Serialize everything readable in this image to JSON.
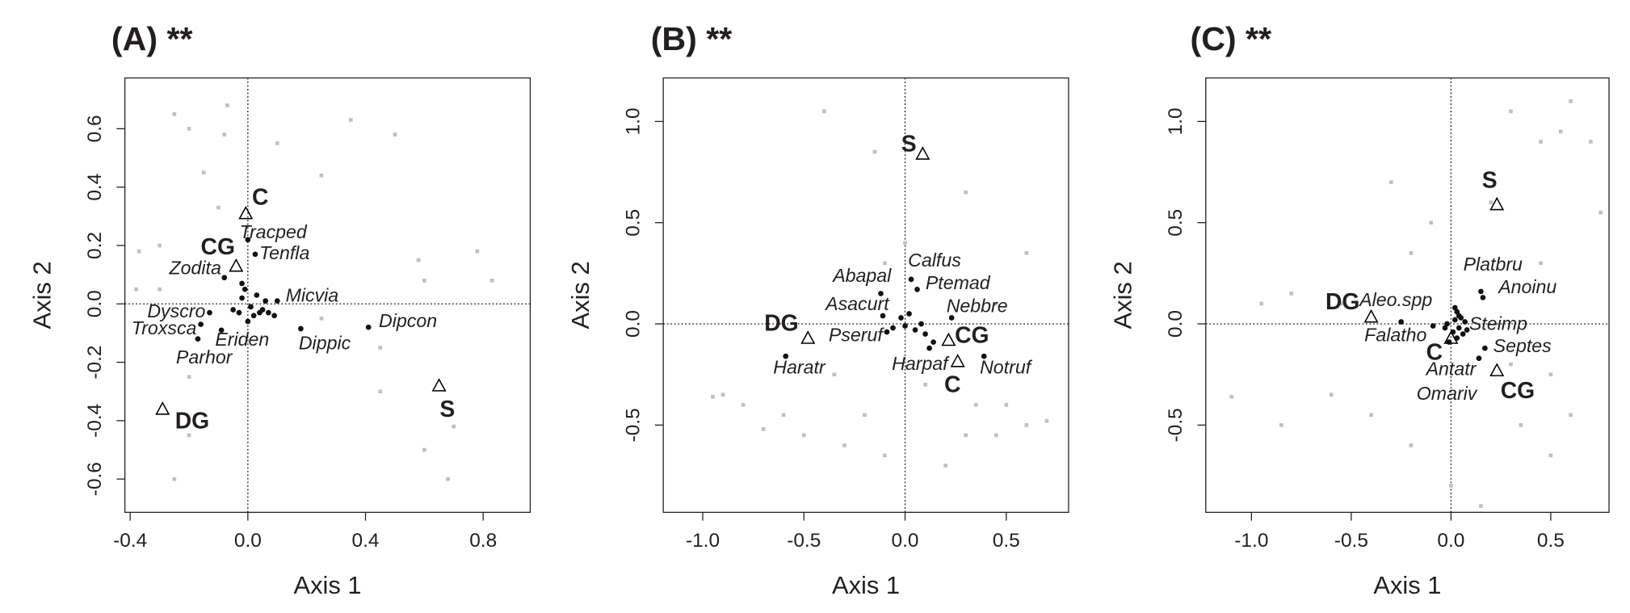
{
  "chart_data": [
    {
      "type": "scatter",
      "title": "(A) **",
      "xlabel": "Axis 1",
      "ylabel": "Axis 2",
      "xlim": [
        -0.418,
        0.96
      ],
      "ylim": [
        -0.714,
        0.774
      ],
      "xticks": [
        -0.4,
        {
          "value": 0,
          "label": "0.0"
        },
        0.4,
        0.8
      ],
      "yticks": [
        -0.6,
        -0.4,
        -0.2,
        {
          "value": 0,
          "label": "0.0"
        },
        0.2,
        0.4,
        0.6
      ],
      "zero_lines": true,
      "series": [
        {
          "marker": "square",
          "color": "#c0c0c0",
          "x": [
            -0.25,
            -0.2,
            -0.07,
            -0.15,
            -0.08,
            0.35,
            0.5,
            0.25,
            0.1,
            -0.3,
            -0.37,
            -0.3,
            -0.38,
            0.58,
            0.78,
            0.83,
            0.6,
            0.45,
            0.45,
            0.6,
            0.7,
            0.68,
            -0.2,
            -0.25,
            -0.2,
            0.25,
            -0.1
          ],
          "y": [
            0.65,
            0.6,
            0.68,
            0.45,
            0.58,
            0.63,
            0.58,
            0.44,
            0.55,
            0.2,
            0.18,
            0.05,
            0.05,
            0.15,
            0.18,
            0.08,
            0.08,
            -0.15,
            -0.3,
            -0.5,
            -0.42,
            -0.6,
            -0.45,
            -0.6,
            -0.25,
            -0.05,
            0.33
          ]
        },
        {
          "marker": "dot",
          "color": "#111111",
          "x": [
            0.0,
            0.025,
            -0.08,
            0.1,
            -0.13,
            -0.16,
            -0.09,
            -0.17,
            0.18,
            0.41,
            -0.02,
            0.01,
            0.03,
            0.05,
            -0.03,
            0.02,
            0.06,
            -0.01,
            0.04,
            0.07,
            -0.05,
            0.0,
            0.09,
            -0.02
          ],
          "y": [
            0.22,
            0.17,
            0.09,
            0.01,
            -0.03,
            -0.07,
            -0.09,
            -0.12,
            -0.085,
            -0.08,
            0.02,
            -0.01,
            0.03,
            -0.02,
            -0.03,
            -0.04,
            0.01,
            0.05,
            -0.03,
            -0.03,
            -0.02,
            -0.06,
            -0.04,
            0.07
          ],
          "labels": [
            "Tracped",
            "Tenfla",
            "Zodita",
            "Micvia",
            "Dyscro",
            "Troxsca",
            "Eriden",
            "Parhor",
            "Dippic",
            "Dipcon",
            null,
            null,
            null,
            null,
            null,
            null,
            null,
            null,
            null,
            null,
            null,
            null,
            null,
            null
          ]
        },
        {
          "marker": "triangle",
          "color": "#000000",
          "x": [
            -0.007,
            -0.04,
            -0.29,
            0.65
          ],
          "y": [
            0.31,
            0.13,
            -0.36,
            -0.28
          ],
          "labels": [
            "C",
            "CG",
            "DG",
            "S"
          ]
        }
      ]
    },
    {
      "type": "scatter",
      "title": "(B) **",
      "xlabel": "Axis 1",
      "ylabel": "Axis 2",
      "xlim": [
        -1.195,
        0.808
      ],
      "ylim": [
        -0.931,
        1.215
      ],
      "xticks": [
        {
          "value": -1,
          "label": "-1.0"
        },
        -0.5,
        {
          "value": 0,
          "label": "0.0"
        },
        0.5
      ],
      "yticks": [
        -0.5,
        {
          "value": 0,
          "label": "0.0"
        },
        0.5,
        {
          "value": 1,
          "label": "1.0"
        }
      ],
      "zero_lines": true,
      "series": [
        {
          "marker": "square",
          "color": "#c0c0c0",
          "x": [
            -0.4,
            -0.15,
            -0.1,
            0.3,
            0.45,
            0.6,
            -0.9,
            -0.6,
            -0.8,
            -0.5,
            -0.3,
            -0.2,
            -0.1,
            0.1,
            0.3,
            0.45,
            0.5,
            0.6,
            0.7,
            -0.7,
            -0.95,
            0.2,
            -0.35,
            0.0,
            0.35
          ],
          "y": [
            1.05,
            0.85,
            0.3,
            0.65,
            0.1,
            0.35,
            -0.35,
            -0.45,
            -0.4,
            -0.55,
            -0.6,
            -0.45,
            -0.65,
            -0.3,
            -0.55,
            -0.55,
            -0.4,
            -0.5,
            -0.48,
            -0.52,
            -0.36,
            -0.7,
            -0.25,
            0.4,
            -0.4
          ]
        },
        {
          "marker": "dot",
          "color": "#111111",
          "x": [
            -0.12,
            0.03,
            0.06,
            -0.11,
            0.23,
            -0.09,
            -0.59,
            0.14,
            0.39,
            -0.02,
            0.02,
            0.05,
            0.1,
            -0.06,
            0.12,
            0.0,
            0.08
          ],
          "y": [
            0.15,
            0.22,
            0.17,
            0.04,
            0.03,
            -0.04,
            -0.16,
            -0.09,
            -0.16,
            0.03,
            0.05,
            -0.03,
            -0.05,
            -0.02,
            -0.12,
            -0.01,
            0.0
          ],
          "labels": [
            "Abapal",
            "Calfus",
            "Ptemad",
            "Asacurt",
            "Nebbre",
            "Pseruf",
            "Haratr",
            "Harpaf",
            "Notruf",
            null,
            null,
            null,
            null,
            null,
            null,
            null,
            null
          ]
        },
        {
          "marker": "triangle",
          "color": "#000000",
          "x": [
            0.087,
            -0.48,
            0.215,
            0.26
          ],
          "y": [
            0.84,
            -0.07,
            -0.08,
            -0.185
          ],
          "labels": [
            "S",
            "DG",
            "CG",
            "C"
          ]
        }
      ]
    },
    {
      "type": "scatter",
      "title": "(C) **",
      "xlabel": "Axis 1",
      "ylabel": "Axis 2",
      "xlim": [
        -1.229,
        0.792
      ],
      "ylim": [
        -0.931,
        1.215
      ],
      "xticks": [
        {
          "value": -1,
          "label": "-1.0"
        },
        -0.5,
        {
          "value": 0,
          "label": "0.0"
        },
        0.5
      ],
      "yticks": [
        -0.5,
        {
          "value": 0,
          "label": "0.0"
        },
        0.5,
        {
          "value": 1,
          "label": "1.0"
        }
      ],
      "zero_lines": true,
      "series": [
        {
          "marker": "square",
          "color": "#c0c0c0",
          "x": [
            0.3,
            0.55,
            0.6,
            0.7,
            0.75,
            0.45,
            0.2,
            -0.1,
            -0.2,
            -0.55,
            -0.8,
            -0.95,
            -1.1,
            -0.85,
            -0.6,
            -0.4,
            -0.2,
            0.0,
            0.15,
            0.35,
            0.5,
            0.6,
            0.3,
            0.5,
            0.45,
            -0.3
          ],
          "y": [
            1.05,
            0.95,
            1.1,
            0.9,
            0.55,
            0.9,
            0.6,
            0.5,
            0.35,
            0.1,
            0.15,
            0.1,
            -0.36,
            -0.5,
            -0.35,
            -0.45,
            -0.6,
            -0.8,
            -0.9,
            -0.5,
            -0.65,
            -0.45,
            -0.2,
            -0.25,
            0.3,
            0.7
          ]
        },
        {
          "marker": "dot",
          "color": "#111111",
          "x": [
            -0.25,
            -0.09,
            0.15,
            0.16,
            0.07,
            0.17,
            -0.01,
            0.14,
            0.02,
            0.03,
            0.04,
            -0.02,
            0.01,
            0.05,
            0.06,
            0.02,
            -0.03,
            0.03,
            0.08,
            0.04
          ],
          "y": [
            0.01,
            -0.01,
            0.16,
            0.13,
            0.01,
            -0.12,
            -0.09,
            -0.17,
            0.02,
            0.06,
            -0.02,
            0.0,
            -0.04,
            0.03,
            -0.05,
            0.08,
            -0.02,
            -0.07,
            -0.03,
            0.04
          ],
          "labels": [
            "Aleo.spp",
            "Falatho",
            "Platbru",
            "Anoinu",
            "Steimp",
            "Septes",
            "Antatr",
            "Omariv",
            null,
            null,
            null,
            null,
            null,
            null,
            null,
            null,
            null,
            null,
            null,
            null
          ]
        },
        {
          "marker": "triangle",
          "color": "#000000",
          "x": [
            0.23,
            -0.4,
            0.0,
            0.23
          ],
          "y": [
            0.59,
            0.035,
            -0.07,
            -0.23
          ],
          "labels": [
            "S",
            "DG",
            "C",
            "CG"
          ]
        }
      ]
    }
  ]
}
